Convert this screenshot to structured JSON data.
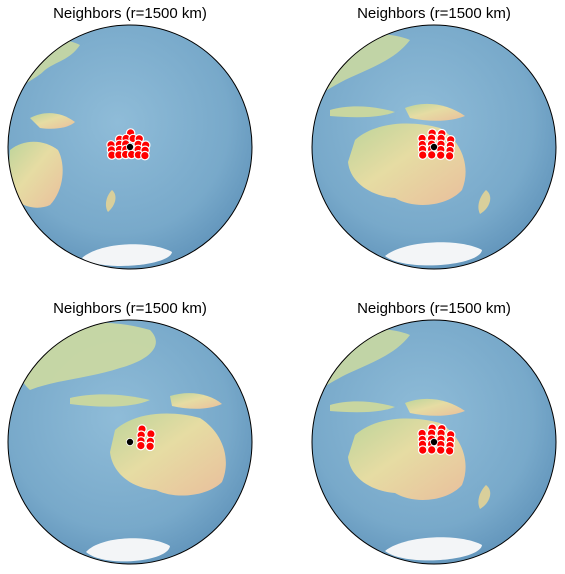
{
  "chart_data": [
    {
      "type": "scatter",
      "title": "Neighbors (r=1500 km)",
      "projection": "orthographic",
      "center": {
        "lon": 170.5,
        "lat": -17.2
      },
      "query_point": {
        "lon": 170.5,
        "lat": -17.2
      },
      "neighbors": [
        {
          "lon": 170.8,
          "lat": -10.6
        },
        {
          "lon": 165.5,
          "lat": -13.5
        },
        {
          "lon": 168.6,
          "lat": -13.2
        },
        {
          "lon": 172.0,
          "lat": -13.2
        },
        {
          "lon": 175.0,
          "lat": -13.3
        },
        {
          "lon": 161.2,
          "lat": -16.0
        },
        {
          "lon": 165.3,
          "lat": -15.9
        },
        {
          "lon": 168.4,
          "lat": -15.8
        },
        {
          "lon": 174.5,
          "lat": -15.9
        },
        {
          "lon": 178.2,
          "lat": -16.2
        },
        {
          "lon": 161.3,
          "lat": -18.4
        },
        {
          "lon": 165.3,
          "lat": -18.3
        },
        {
          "lon": 168.4,
          "lat": -18.3
        },
        {
          "lon": 171.2,
          "lat": -18.3
        },
        {
          "lon": 174.5,
          "lat": -18.3
        },
        {
          "lon": 178.0,
          "lat": -18.6
        },
        {
          "lon": 161.3,
          "lat": -20.8
        },
        {
          "lon": 164.9,
          "lat": -20.8
        },
        {
          "lon": 168.3,
          "lat": -20.7
        },
        {
          "lon": 171.3,
          "lat": -20.7
        },
        {
          "lon": 174.7,
          "lat": -20.8
        },
        {
          "lon": 178.0,
          "lat": -21.1
        }
      ]
    },
    {
      "type": "scatter",
      "title": "Neighbors (r=1500 km)",
      "projection": "orthographic",
      "center": {
        "lon": 140.0,
        "lat": -22.0
      },
      "query_point": {
        "lon": 140.0,
        "lat": -22.0
      },
      "neighbors": [
        {
          "lon": 139.1,
          "lat": -15.5
        },
        {
          "lon": 143.8,
          "lat": -15.7
        },
        {
          "lon": 134.1,
          "lat": -17.9
        },
        {
          "lon": 138.8,
          "lat": -17.9
        },
        {
          "lon": 143.5,
          "lat": -17.9
        },
        {
          "lon": 148.3,
          "lat": -18.4
        },
        {
          "lon": 134.1,
          "lat": -20.7
        },
        {
          "lon": 138.8,
          "lat": -20.7
        },
        {
          "lon": 143.5,
          "lat": -20.7
        },
        {
          "lon": 148.3,
          "lat": -21.1
        },
        {
          "lon": 134.1,
          "lat": -23.0
        },
        {
          "lon": 138.8,
          "lat": -23.0
        },
        {
          "lon": 143.5,
          "lat": -23.2
        },
        {
          "lon": 148.2,
          "lat": -23.5
        },
        {
          "lon": 134.1,
          "lat": -25.7
        },
        {
          "lon": 138.8,
          "lat": -25.7
        },
        {
          "lon": 143.5,
          "lat": -25.8
        },
        {
          "lon": 148.2,
          "lat": -26.0
        }
      ]
    },
    {
      "type": "scatter",
      "title": "Neighbors (r=1500 km)",
      "projection": "orthographic",
      "center": {
        "lon": 125.0,
        "lat": -22.5
      },
      "query_point": {
        "lon": 125.0,
        "lat": -22.5
      },
      "neighbors": [
        {
          "lon": 130.9,
          "lat": -16.3
        },
        {
          "lon": 130.6,
          "lat": -19.2
        },
        {
          "lon": 135.4,
          "lat": -18.4
        },
        {
          "lon": 130.6,
          "lat": -21.9
        },
        {
          "lon": 135.4,
          "lat": -21.9
        },
        {
          "lon": 130.6,
          "lat": -24.1
        },
        {
          "lon": 135.4,
          "lat": -24.2
        }
      ]
    },
    {
      "type": "scatter",
      "title": "Neighbors (r=1500 km)",
      "projection": "orthographic",
      "center": {
        "lon": 140.0,
        "lat": -22.0
      },
      "query_point": {
        "lon": 140.0,
        "lat": -22.0
      },
      "neighbors": [
        {
          "lon": 139.1,
          "lat": -15.5
        },
        {
          "lon": 143.8,
          "lat": -15.7
        },
        {
          "lon": 134.1,
          "lat": -17.9
        },
        {
          "lon": 138.8,
          "lat": -17.9
        },
        {
          "lon": 143.5,
          "lat": -17.9
        },
        {
          "lon": 148.3,
          "lat": -18.4
        },
        {
          "lon": 134.1,
          "lat": -20.7
        },
        {
          "lon": 138.8,
          "lat": -20.7
        },
        {
          "lon": 143.5,
          "lat": -20.7
        },
        {
          "lon": 148.3,
          "lat": -21.1
        },
        {
          "lon": 134.1,
          "lat": -23.0
        },
        {
          "lon": 138.8,
          "lat": -23.0
        },
        {
          "lon": 143.5,
          "lat": -23.2
        },
        {
          "lon": 148.2,
          "lat": -23.5
        },
        {
          "lon": 134.1,
          "lat": -25.7
        },
        {
          "lon": 138.8,
          "lat": -25.7
        },
        {
          "lon": 143.5,
          "lat": -25.8
        },
        {
          "lon": 148.2,
          "lat": -26.0
        }
      ]
    }
  ],
  "colors": {
    "ocean": "#7fb0cf",
    "ocean_deep": "#5e93bb",
    "land": "#e4dca0",
    "land_green": "#b5cf97",
    "land_red": "#e8bd9a",
    "ice": "#f4f6f8",
    "neighbor_fill": "#ff0000",
    "neighbor_edge": "#ffffff",
    "query_point": "#000000",
    "globe_edge": "#000000"
  },
  "icons": {
    "neighbor_marker": "red-circle-marker",
    "query_marker": "black-dot-marker"
  }
}
